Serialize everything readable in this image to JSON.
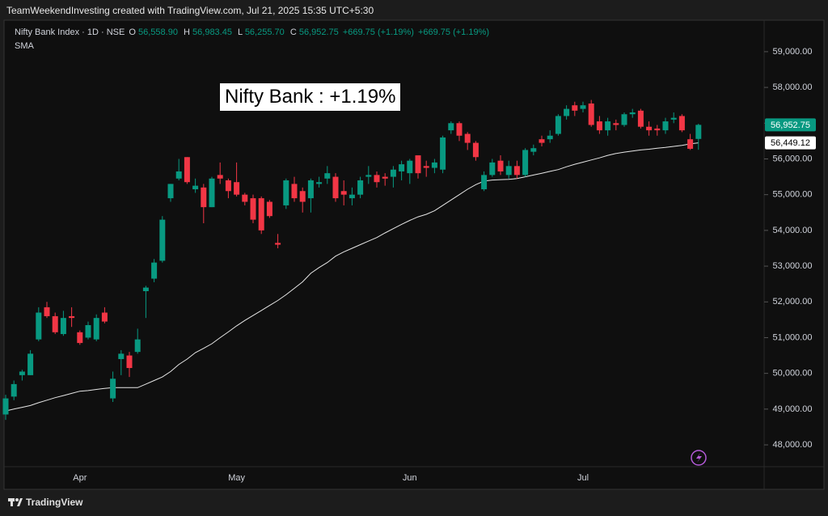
{
  "header": "TeamWeekendInvesting created with TradingView.com, Jul 21, 2025 15:35 UTC+5:30",
  "footer": "TradingView",
  "chart_data": {
    "type": "candlestick",
    "annotation": "Nifty Bank : +1.19%",
    "legend_items": [
      {
        "key": "O",
        "text": "56,558.90"
      },
      {
        "key": "H",
        "text": "56,983.45"
      },
      {
        "key": "L",
        "text": "56,255.70"
      },
      {
        "key": "C",
        "text": "56,952.75"
      }
    ],
    "change_texts": [
      "+669.75 (+1.19%)",
      "+669.75 (+1.19%)"
    ],
    "categories": [
      null,
      null,
      null,
      null,
      null,
      null,
      null,
      null,
      null,
      "Apr",
      null,
      null,
      null,
      null,
      null,
      null,
      null,
      null,
      null,
      null,
      null,
      null,
      null,
      null,
      null,
      null,
      null,
      null,
      "May",
      null,
      null,
      null,
      null,
      null,
      null,
      null,
      null,
      null,
      null,
      null,
      null,
      null,
      null,
      null,
      null,
      null,
      null,
      null,
      null,
      "Jun",
      null,
      null,
      null,
      null,
      null,
      null,
      null,
      null,
      null,
      null,
      null,
      null,
      null,
      null,
      null,
      null,
      null,
      null,
      null,
      null,
      "Jul",
      null,
      null,
      null,
      null,
      null,
      null,
      null,
      null,
      null,
      null,
      null,
      null,
      null,
      null
    ],
    "series": [
      {
        "name": "Nifty Bank Index · 1D · NSE",
        "up_color": "#089981",
        "down_color": "#f23645",
        "open": [
          48850,
          49350,
          49950,
          49950,
          50950,
          51850,
          51600,
          51100,
          51600,
          51150,
          51000,
          50950,
          51700,
          49300,
          50400,
          50500,
          50600,
          52300,
          52650,
          53150,
          54900,
          55450,
          56050,
          55150,
          55200,
          54650,
          55550,
          55400,
          55350,
          55000,
          54900,
          54900,
          54800,
          53650,
          54700,
          55300,
          55100,
          54900,
          55300,
          55450,
          55500,
          55100,
          54900,
          55000,
          55500,
          55550,
          55500,
          55500,
          55650,
          55600,
          56100,
          55800,
          55750,
          55700,
          56800,
          57000,
          56700,
          56450,
          55150,
          55550,
          55950,
          55550,
          55800,
          55550,
          56200,
          56550,
          56550,
          56700,
          57200,
          57500,
          57400,
          57550,
          57050,
          56800,
          57000,
          56950,
          57250,
          57350,
          56900,
          56850,
          56800,
          57100,
          57200,
          56550,
          56558.9
        ],
        "high": [
          49400,
          49800,
          50100,
          50650,
          51850,
          52000,
          51700,
          51750,
          51850,
          51200,
          51450,
          51650,
          51850,
          50050,
          50650,
          50600,
          51250,
          52450,
          53200,
          54400,
          55300,
          56000,
          56050,
          55450,
          55300,
          55500,
          55900,
          55450,
          55900,
          55050,
          55000,
          54950,
          54850,
          53900,
          55450,
          55500,
          55200,
          55450,
          55500,
          55800,
          55600,
          55400,
          55200,
          55500,
          55800,
          55650,
          55600,
          55800,
          55950,
          56000,
          56100,
          55950,
          56000,
          56650,
          57050,
          57050,
          56750,
          56500,
          55650,
          56000,
          56100,
          55950,
          55950,
          56300,
          56400,
          56650,
          56800,
          57250,
          57500,
          57600,
          57600,
          57650,
          57200,
          57150,
          57100,
          57300,
          57400,
          57400,
          57050,
          56950,
          57150,
          57300,
          57250,
          56700,
          56983.45
        ],
        "low": [
          48700,
          49250,
          49800,
          49950,
          50900,
          51550,
          51100,
          51050,
          51300,
          50800,
          50950,
          50900,
          51400,
          49200,
          49950,
          49900,
          50550,
          51550,
          52550,
          53100,
          54800,
          55400,
          55300,
          55050,
          54200,
          54650,
          55300,
          54900,
          54950,
          54700,
          54200,
          53900,
          54350,
          53500,
          54600,
          54800,
          54500,
          54500,
          55200,
          55300,
          54800,
          54700,
          54700,
          54900,
          55300,
          55200,
          55250,
          55200,
          55400,
          55300,
          55450,
          55500,
          55600,
          55600,
          56700,
          56500,
          56250,
          55950,
          55100,
          55500,
          55550,
          55450,
          55450,
          55500,
          56100,
          56350,
          56450,
          56650,
          57100,
          57200,
          57300,
          56900,
          56700,
          56650,
          56800,
          56900,
          57150,
          56850,
          56650,
          56650,
          56700,
          57000,
          56750,
          56250,
          56255.7
        ],
        "close": [
          49300,
          49700,
          50050,
          50550,
          51700,
          51600,
          51150,
          51550,
          51550,
          50850,
          51350,
          51550,
          51450,
          49850,
          50550,
          50150,
          50950,
          52400,
          53100,
          54300,
          55300,
          55650,
          55350,
          55250,
          54650,
          55450,
          55450,
          55100,
          55000,
          54800,
          54300,
          54000,
          54400,
          53600,
          55400,
          54900,
          54800,
          55400,
          55350,
          55600,
          54900,
          55000,
          55000,
          55400,
          55550,
          55350,
          55450,
          55700,
          55850,
          55950,
          55600,
          55750,
          55900,
          56600,
          57000,
          56650,
          56450,
          56050,
          55550,
          55900,
          55650,
          55800,
          55550,
          56250,
          56300,
          56450,
          56650,
          57200,
          57400,
          57350,
          57500,
          56950,
          56800,
          57050,
          56950,
          57250,
          57300,
          56900,
          56800,
          56800,
          57050,
          57150,
          56800,
          56283,
          56952.75
        ]
      },
      {
        "name": "SMA",
        "type": "line",
        "color": "#e6e6e6",
        "values": [
          48950,
          49000,
          49050,
          49100,
          49180,
          49250,
          49320,
          49380,
          49440,
          49500,
          49520,
          49550,
          49580,
          49600,
          49600,
          49600,
          49600,
          49700,
          49800,
          49900,
          50050,
          50250,
          50400,
          50580,
          50700,
          50830,
          51000,
          51160,
          51330,
          51480,
          51620,
          51760,
          51900,
          52040,
          52200,
          52380,
          52560,
          52800,
          52960,
          53100,
          53280,
          53400,
          53500,
          53600,
          53700,
          53800,
          53930,
          54050,
          54170,
          54280,
          54380,
          54450,
          54550,
          54700,
          54850,
          55000,
          55150,
          55280,
          55380,
          55410,
          55420,
          55430,
          55450,
          55500,
          55550,
          55600,
          55650,
          55700,
          55780,
          55850,
          55910,
          55970,
          56030,
          56100,
          56150,
          56190,
          56220,
          56250,
          56270,
          56300,
          56320,
          56350,
          56380,
          56420,
          56449.12
        ]
      }
    ],
    "price_tags": [
      {
        "value": 56952.75,
        "label": "56,952.75",
        "color": "#089981",
        "text_color": "#ffffff"
      },
      {
        "value": 56449.12,
        "label": "56,449.12",
        "color": "#ffffff",
        "text_color": "#000000"
      }
    ],
    "ylim": [
      47390,
      59880
    ],
    "yticks": [
      {
        "value": 48000,
        "label": "48,000.00"
      },
      {
        "value": 49000,
        "label": "49,000.00"
      },
      {
        "value": 50000,
        "label": "50,000.00"
      },
      {
        "value": 51000,
        "label": "51,000.00"
      },
      {
        "value": 52000,
        "label": "52,000.00"
      },
      {
        "value": 53000,
        "label": "53,000.00"
      },
      {
        "value": 54000,
        "label": "54,000.00"
      },
      {
        "value": 55000,
        "label": "55,000.00"
      },
      {
        "value": 56000,
        "label": "56,000.00"
      },
      {
        "value": 57000,
        "label": "57,000.00"
      },
      {
        "value": 58000,
        "label": "58,000.00"
      },
      {
        "value": 59000,
        "label": "59,000.00"
      }
    ],
    "grid": false
  }
}
